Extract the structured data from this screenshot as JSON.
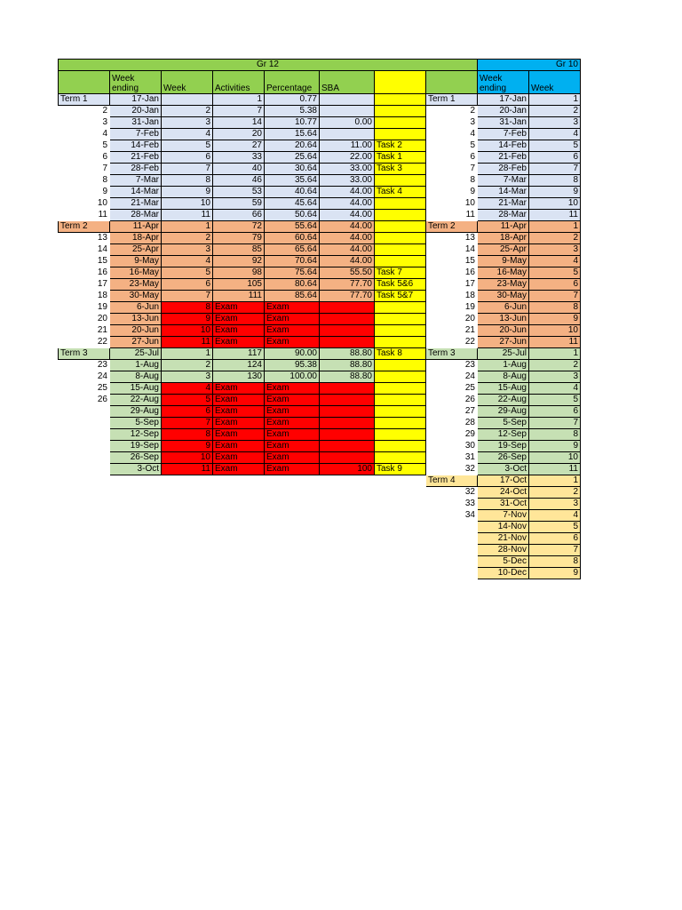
{
  "headers": {
    "gr12_title": "Gr 12",
    "gr10_title": "Gr 10",
    "gr12_columns": [
      "",
      "Week ending",
      "Week",
      "Activities",
      "Percentage",
      "SBA",
      ""
    ],
    "gr10_columns": [
      "",
      "Week ending",
      "Week"
    ]
  },
  "rows": [
    {
      "l": "Term 1",
      "lc": "bl",
      "d": "17-Jan",
      "w": "",
      "a": "1",
      "p": "0.77",
      "s": "",
      "t": "",
      "gl": "Term 1",
      "glc": "bl",
      "gd": "17-Jan",
      "gw": "1",
      "c": "bl"
    },
    {
      "l": "2",
      "d": "20-Jan",
      "w": "2",
      "a": "7",
      "p": "5.38",
      "s": "",
      "t": "",
      "gl": "2",
      "gd": "20-Jan",
      "gw": "2",
      "c": "bl"
    },
    {
      "l": "3",
      "d": "31-Jan",
      "w": "3",
      "a": "14",
      "p": "10.77",
      "s": "0.00",
      "t": "",
      "gl": "3",
      "gd": "31-Jan",
      "gw": "3",
      "c": "bl"
    },
    {
      "l": "4",
      "d": "7-Feb",
      "w": "4",
      "a": "20",
      "p": "15.64",
      "s": "",
      "t": "",
      "gl": "4",
      "gd": "7-Feb",
      "gw": "4",
      "c": "bl"
    },
    {
      "l": "5",
      "d": "14-Feb",
      "w": "5",
      "a": "27",
      "p": "20.64",
      "s": "11.00",
      "t": "Task 2",
      "gl": "5",
      "gd": "14-Feb",
      "gw": "5",
      "c": "bl"
    },
    {
      "l": "6",
      "d": "21-Feb",
      "w": "6",
      "a": "33",
      "p": "25.64",
      "s": "22.00",
      "t": "Task 1",
      "gl": "6",
      "gd": "21-Feb",
      "gw": "6",
      "c": "bl"
    },
    {
      "l": "7",
      "d": "28-Feb",
      "w": "7",
      "a": "40",
      "p": "30.64",
      "s": "33.00",
      "t": "Task 3",
      "gl": "7",
      "gd": "28-Feb",
      "gw": "7",
      "c": "bl"
    },
    {
      "l": "8",
      "d": "7-Mar",
      "w": "8",
      "a": "46",
      "p": "35.64",
      "s": "33.00",
      "t": "",
      "gl": "8",
      "gd": "7-Mar",
      "gw": "8",
      "c": "bl"
    },
    {
      "l": "9",
      "d": "14-Mar",
      "w": "9",
      "a": "53",
      "p": "40.64",
      "s": "44.00",
      "t": "Task 4",
      "gl": "9",
      "gd": "14-Mar",
      "gw": "9",
      "c": "bl"
    },
    {
      "l": "10",
      "d": "21-Mar",
      "w": "10",
      "a": "59",
      "p": "45.64",
      "s": "44.00",
      "t": "",
      "gl": "10",
      "gd": "21-Mar",
      "gw": "10",
      "c": "bl"
    },
    {
      "l": "11",
      "d": "28-Mar",
      "w": "11",
      "a": "66",
      "p": "50.64",
      "s": "44.00",
      "t": "",
      "gl": "11",
      "gd": "28-Mar",
      "gw": "11",
      "c": "bl"
    },
    {
      "l": "Term 2",
      "lc": "or",
      "d": "11-Apr",
      "w": "1",
      "a": "72",
      "p": "55.64",
      "s": "44.00",
      "t": "",
      "gl": "Term 2",
      "glc": "or",
      "gd": "11-Apr",
      "gw": "1",
      "c": "or"
    },
    {
      "l": "13",
      "d": "18-Apr",
      "w": "2",
      "a": "79",
      "p": "60.64",
      "s": "44.00",
      "t": "",
      "gl": "13",
      "gd": "18-Apr",
      "gw": "2",
      "c": "or"
    },
    {
      "l": "14",
      "d": "25-Apr",
      "w": "3",
      "a": "85",
      "p": "65.64",
      "s": "44.00",
      "t": "",
      "gl": "14",
      "gd": "25-Apr",
      "gw": "3",
      "c": "or"
    },
    {
      "l": "15",
      "d": "9-May",
      "w": "4",
      "a": "92",
      "p": "70.64",
      "s": "44.00",
      "t": "",
      "gl": "15",
      "gd": "9-May",
      "gw": "4",
      "c": "or"
    },
    {
      "l": "16",
      "d": "16-May",
      "w": "5",
      "a": "98",
      "p": "75.64",
      "s": "55.50",
      "t": "Task 7",
      "gl": "16",
      "gd": "16-May",
      "gw": "5",
      "c": "or"
    },
    {
      "l": "17",
      "d": "23-May",
      "w": "6",
      "a": "105",
      "p": "80.64",
      "s": "77.70",
      "t": "Task 5&6",
      "gl": "17",
      "gd": "23-May",
      "gw": "6",
      "c": "or"
    },
    {
      "l": "18",
      "d": "30-May",
      "w": "7",
      "a": "111",
      "p": "85.64",
      "s": "77.70",
      "t": "Task 5&7",
      "gl": "18",
      "gd": "30-May",
      "gw": "7",
      "c": "or"
    },
    {
      "l": "19",
      "d": "6-Jun",
      "w": "8",
      "a": "Exam",
      "p": "Exam",
      "s": "",
      "t": "",
      "gl": "19",
      "gd": "6-Jun",
      "gw": "8",
      "c": "or",
      "ex": true
    },
    {
      "l": "20",
      "d": "13-Jun",
      "w": "9",
      "a": "Exam",
      "p": "Exam",
      "s": "",
      "t": "",
      "gl": "20",
      "gd": "13-Jun",
      "gw": "9",
      "c": "or",
      "ex": true
    },
    {
      "l": "21",
      "d": "20-Jun",
      "w": "10",
      "a": "Exam",
      "p": "Exam",
      "s": "",
      "t": "",
      "gl": "21",
      "gd": "20-Jun",
      "gw": "10",
      "c": "or",
      "ex": true
    },
    {
      "l": "22",
      "d": "27-Jun",
      "w": "11",
      "a": "Exam",
      "p": "Exam",
      "s": "",
      "t": "",
      "gl": "22",
      "gd": "27-Jun",
      "gw": "11",
      "c": "or",
      "ex": true
    },
    {
      "l": "Term  3",
      "lc": "gr",
      "d": "25-Jul",
      "w": "1",
      "a": "117",
      "p": "90.00",
      "s": "88.80",
      "t": "Task 8",
      "gl": "Term 3",
      "glc": "gr",
      "gd": "25-Jul",
      "gw": "1",
      "c": "gr"
    },
    {
      "l": "23",
      "d": "1-Aug",
      "w": "2",
      "a": "124",
      "p": "95.38",
      "s": "88.80",
      "t": "",
      "gl": "23",
      "gd": "1-Aug",
      "gw": "2",
      "c": "gr"
    },
    {
      "l": "24",
      "d": "8-Aug",
      "w": "3",
      "a": "130",
      "p": "100.00",
      "s": "88.80",
      "t": "",
      "gl": "24",
      "gd": "8-Aug",
      "gw": "3",
      "c": "gr"
    },
    {
      "l": "25",
      "d": "15-Aug",
      "w": "4",
      "a": "Exam",
      "p": "Exam",
      "s": "",
      "t": "",
      "gl": "25",
      "gd": "15-Aug",
      "gw": "4",
      "c": "gr",
      "ex": true
    },
    {
      "l": "26",
      "d": "22-Aug",
      "w": "5",
      "a": "Exam",
      "p": "Exam",
      "s": "",
      "t": "",
      "gl": "26",
      "gd": "22-Aug",
      "gw": "5",
      "c": "gr",
      "ex": true
    },
    {
      "l": "",
      "d": "29-Aug",
      "w": "6",
      "a": "Exam",
      "p": "Exam",
      "s": "",
      "t": "",
      "gl": "27",
      "gd": "29-Aug",
      "gw": "6",
      "c": "gr",
      "ex": true
    },
    {
      "l": "",
      "d": "5-Sep",
      "w": "7",
      "a": "Exam",
      "p": "Exam",
      "s": "",
      "t": "",
      "gl": "28",
      "gd": "5-Sep",
      "gw": "7",
      "c": "gr",
      "ex": true
    },
    {
      "l": "",
      "d": "12-Sep",
      "w": "8",
      "a": "Exam",
      "p": "Exam",
      "s": "",
      "t": "",
      "gl": "29",
      "gd": "12-Sep",
      "gw": "8",
      "c": "gr",
      "ex": true
    },
    {
      "l": "",
      "d": "19-Sep",
      "w": "9",
      "a": "Exam",
      "p": "Exam",
      "s": "",
      "t": "",
      "gl": "30",
      "gd": "19-Sep",
      "gw": "9",
      "c": "gr",
      "ex": true
    },
    {
      "l": "",
      "d": "26-Sep",
      "w": "10",
      "a": "Exam",
      "p": "Exam",
      "s": "",
      "t": "",
      "gl": "31",
      "gd": "26-Sep",
      "gw": "10",
      "c": "gr",
      "ex": true
    },
    {
      "l": "",
      "d": "3-Oct",
      "w": "11",
      "a": "Exam",
      "p": "Exam",
      "s": "100",
      "t": "Task 9",
      "gl": "32",
      "gd": "3-Oct",
      "gw": "11",
      "c": "gr",
      "ex": true
    },
    {
      "gr10only": true,
      "gl": "Term 4",
      "glc": "tn",
      "gd": "17-Oct",
      "gw": "1",
      "c": "tn"
    },
    {
      "gr10only": true,
      "gl": "32",
      "gd": "24-Oct",
      "gw": "2",
      "c": "tn"
    },
    {
      "gr10only": true,
      "gl": "33",
      "gd": "31-Oct",
      "gw": "3",
      "c": "tn"
    },
    {
      "gr10only": true,
      "gl": "34",
      "gd": "7-Nov",
      "gw": "4",
      "c": "tn"
    },
    {
      "gr10only": true,
      "gl": "",
      "gd": "14-Nov",
      "gw": "5",
      "c": "tn"
    },
    {
      "gr10only": true,
      "gl": "",
      "gd": "21-Nov",
      "gw": "6",
      "c": "tn"
    },
    {
      "gr10only": true,
      "gl": "",
      "gd": "28-Nov",
      "gw": "7",
      "c": "tn"
    },
    {
      "gr10only": true,
      "gl": "",
      "gd": "5-Dec",
      "gw": "8",
      "c": "tn"
    },
    {
      "gr10only": true,
      "gl": "",
      "gd": "10-Dec",
      "gw": "9",
      "c": "tn"
    }
  ]
}
